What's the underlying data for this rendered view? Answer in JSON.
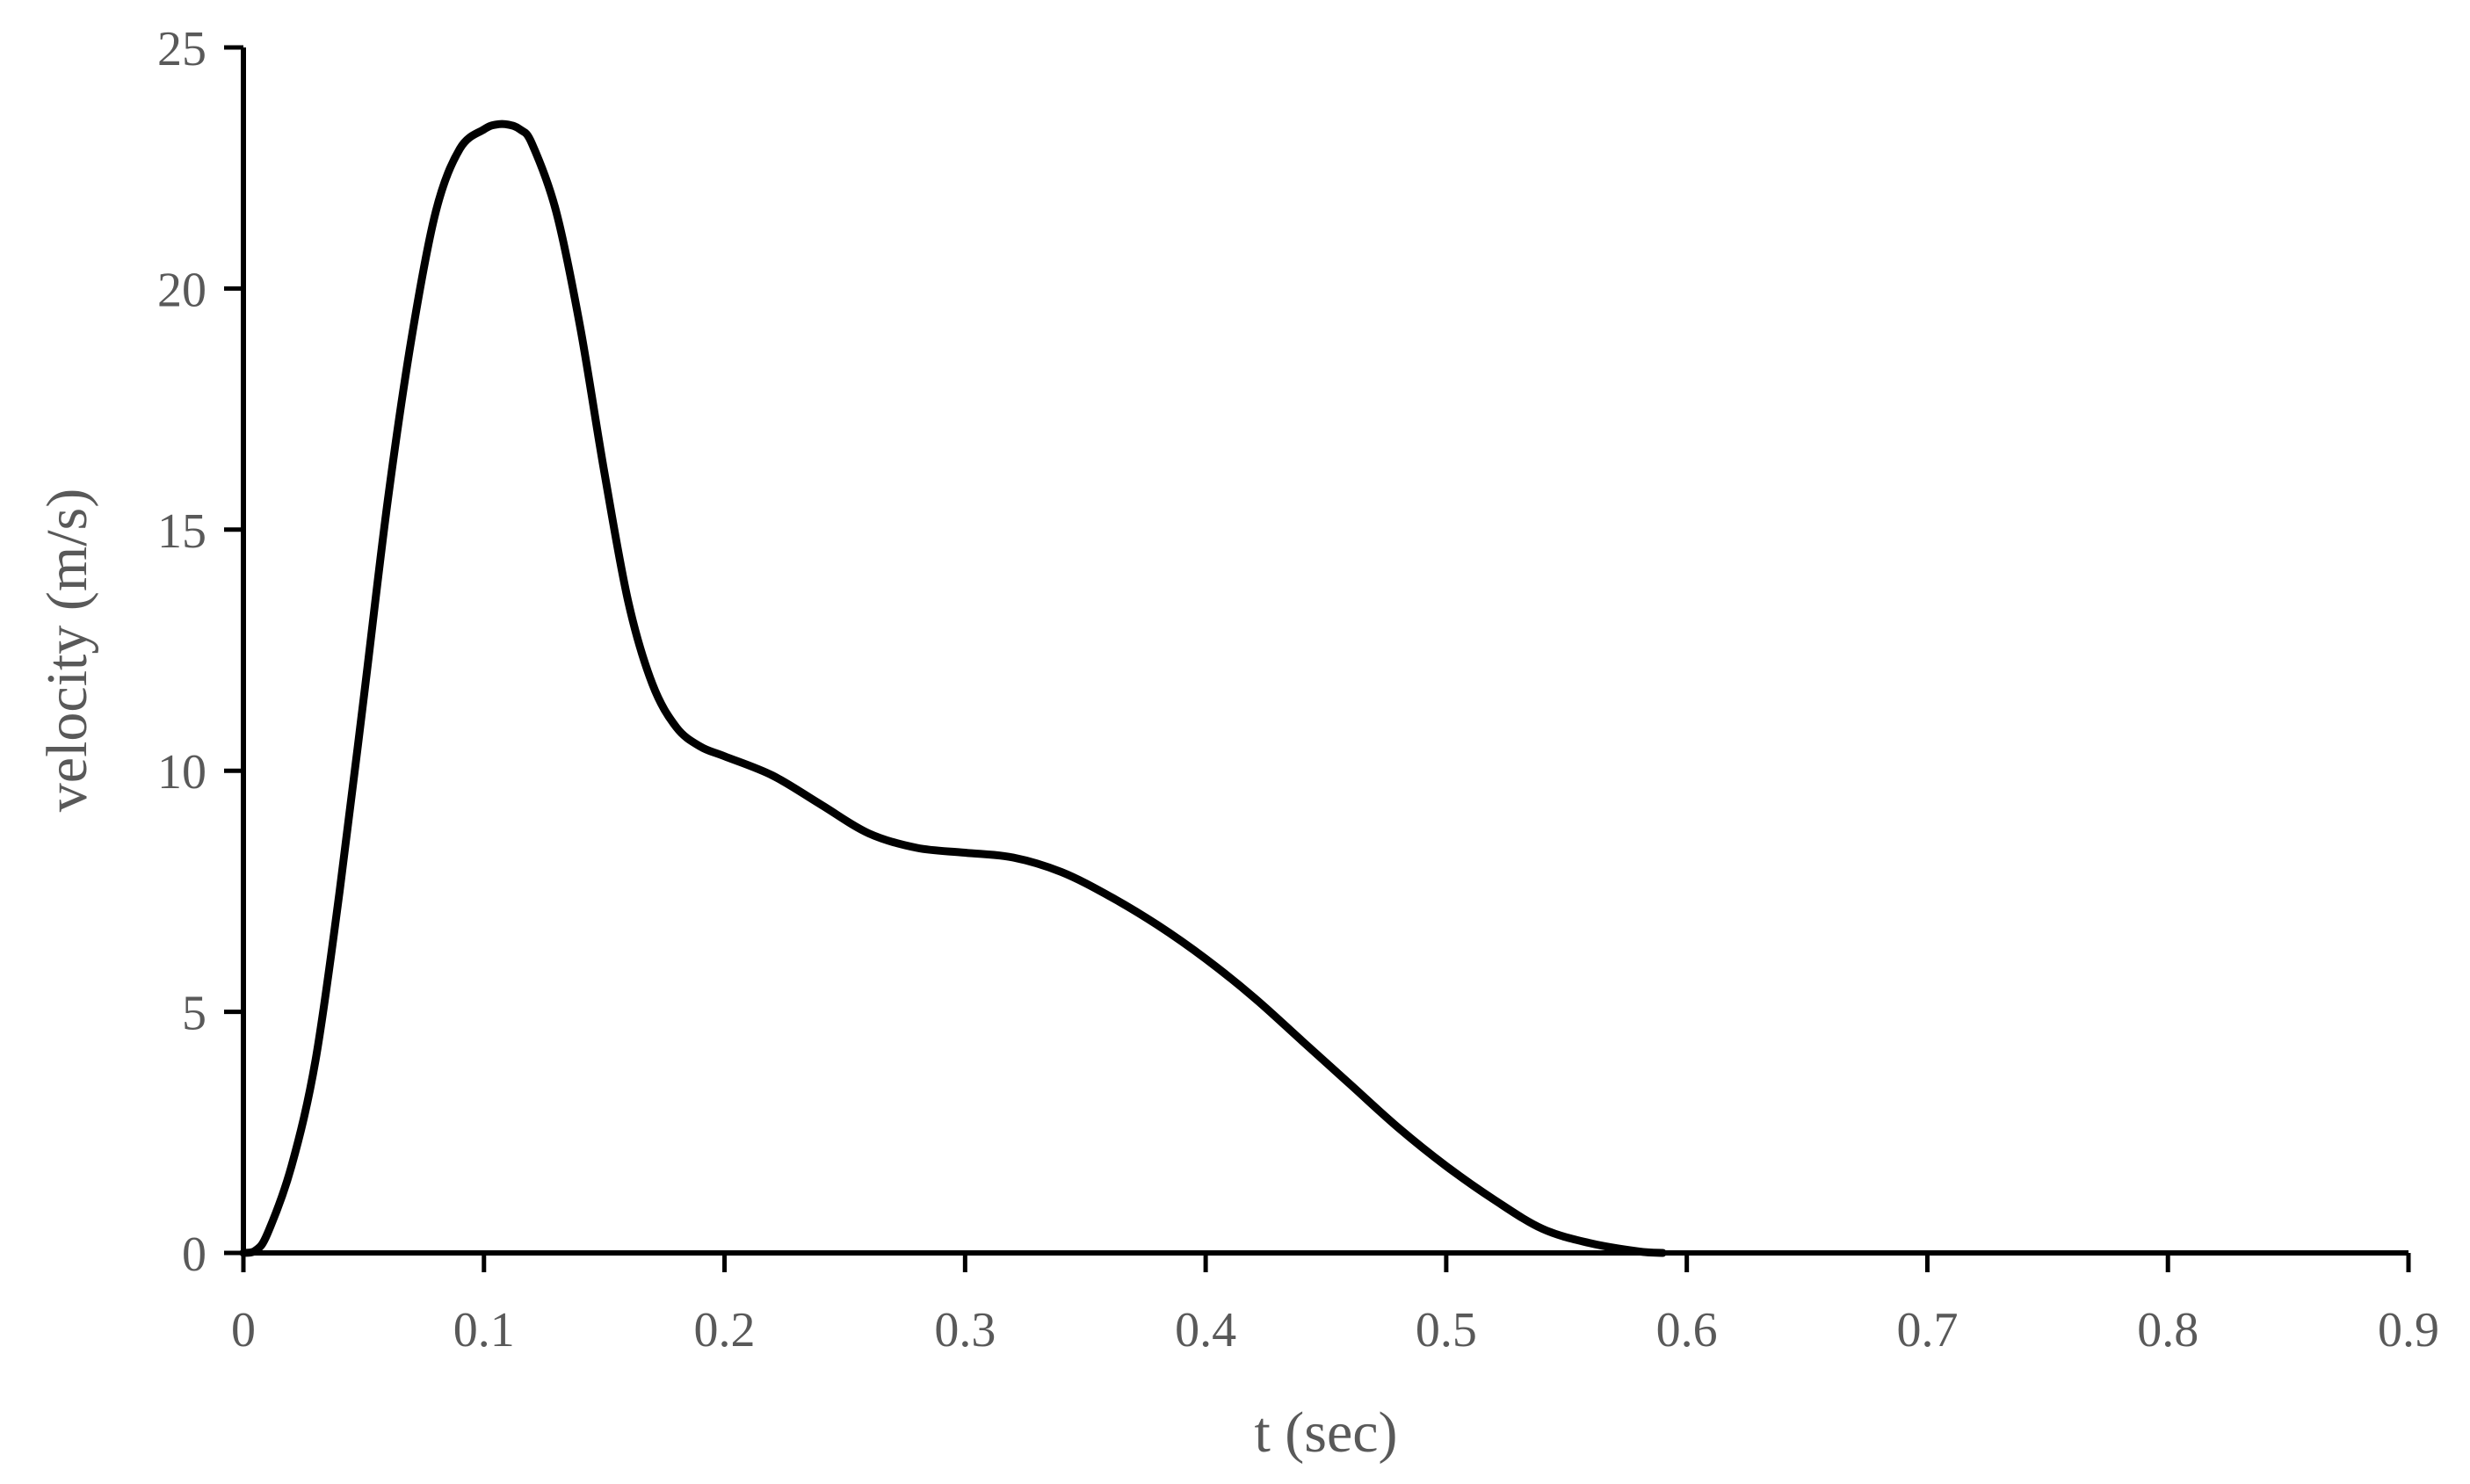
{
  "chart_data": {
    "type": "line",
    "title": "",
    "xlabel": "t (sec)",
    "ylabel": "velocity (m/s)",
    "xlim": [
      0,
      0.9
    ],
    "ylim": [
      0,
      25
    ],
    "x_ticks": [
      0,
      0.1,
      0.2,
      0.3,
      0.4,
      0.5,
      0.6,
      0.7,
      0.8,
      0.9
    ],
    "x_tick_labels": [
      "0",
      "0.1",
      "0.2",
      "0.3",
      "0.4",
      "0.5",
      "0.6",
      "0.7",
      "0.8",
      "0.9"
    ],
    "y_ticks": [
      0,
      5,
      10,
      15,
      20,
      25
    ],
    "y_tick_labels": [
      "0",
      "5",
      "10",
      "15",
      "20",
      "25"
    ],
    "grid": false,
    "legend": "none",
    "line_color": "#000000",
    "series": [
      {
        "x": [
          0,
          0.005,
          0.01,
          0.02,
          0.03,
          0.04,
          0.05,
          0.06,
          0.07,
          0.08,
          0.09,
          0.1,
          0.105,
          0.11,
          0.115,
          0.12,
          0.13,
          0.14,
          0.15,
          0.16,
          0.17,
          0.18,
          0.19,
          0.2,
          0.22,
          0.24,
          0.26,
          0.28,
          0.3,
          0.32,
          0.34,
          0.36,
          0.38,
          0.4,
          0.42,
          0.44,
          0.46,
          0.48,
          0.5,
          0.52,
          0.54,
          0.56,
          0.58,
          0.59
        ],
        "y": [
          0,
          0.05,
          0.4,
          1.8,
          4.0,
          7.5,
          11.5,
          15.6,
          19.0,
          21.6,
          22.9,
          23.3,
          23.4,
          23.4,
          23.3,
          23.0,
          21.6,
          19.2,
          16.2,
          13.5,
          11.8,
          10.9,
          10.5,
          10.3,
          9.9,
          9.3,
          8.7,
          8.4,
          8.3,
          8.2,
          7.9,
          7.4,
          6.8,
          6.1,
          5.3,
          4.4,
          3.5,
          2.6,
          1.8,
          1.1,
          0.5,
          0.2,
          0.03,
          0
        ]
      }
    ]
  }
}
